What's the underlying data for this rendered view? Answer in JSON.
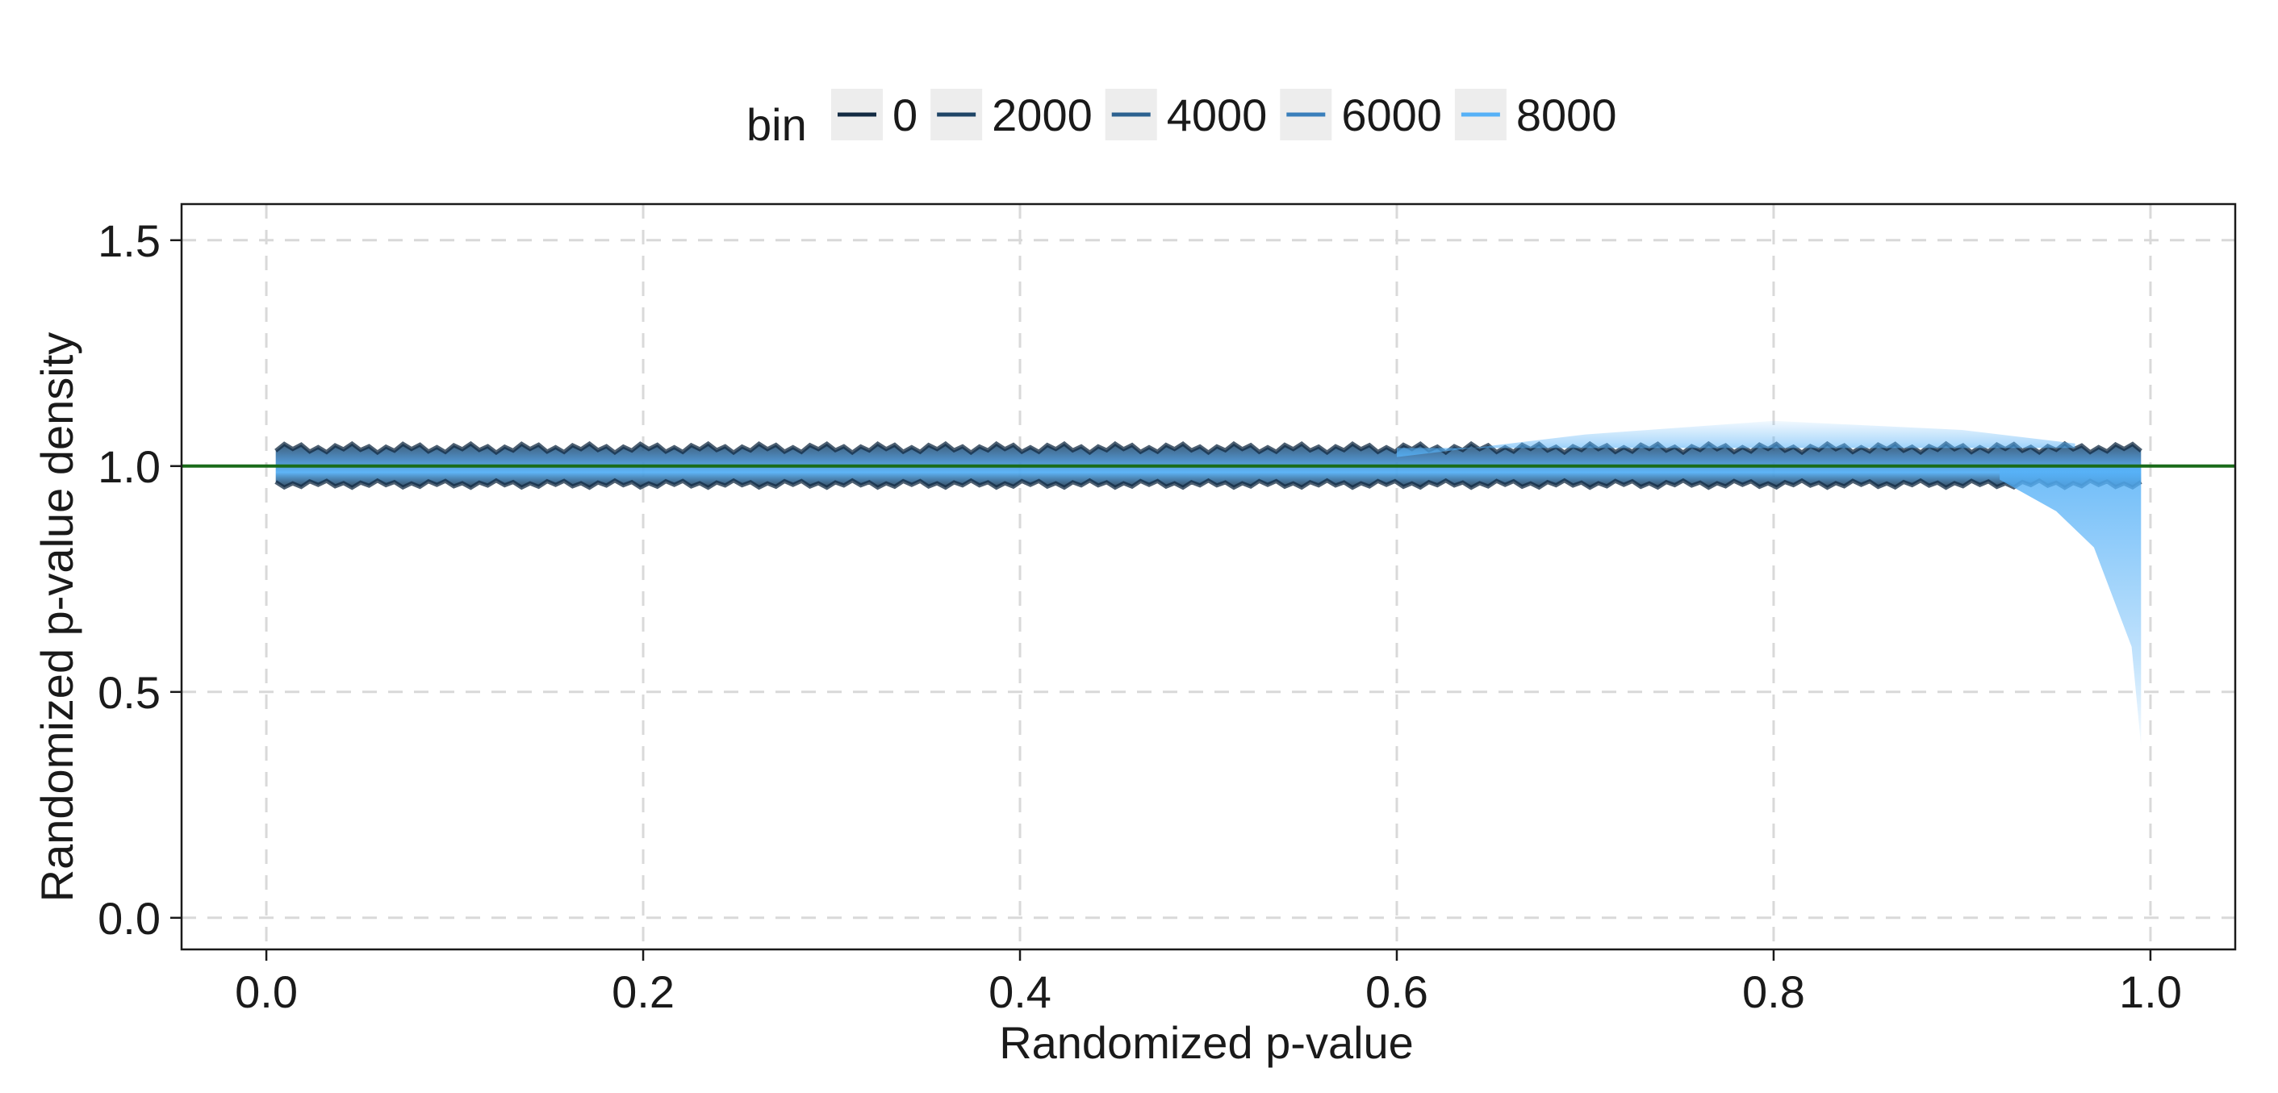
{
  "chart_data": {
    "type": "line",
    "title": "",
    "xlabel": "Randomized p-value",
    "ylabel": "Randomized p-value density",
    "xlim": [
      -0.045,
      1.045
    ],
    "ylim": [
      -0.07,
      1.58
    ],
    "x_ticks": [
      "0.0",
      "0.2",
      "0.4",
      "0.6",
      "0.8",
      "1.0"
    ],
    "y_ticks": [
      "0.0",
      "0.5",
      "1.0",
      "1.5"
    ],
    "x_tick_values": [
      0.0,
      0.2,
      0.4,
      0.6,
      0.8,
      1.0
    ],
    "y_tick_values": [
      0.0,
      0.5,
      1.0,
      1.5
    ],
    "grid": true,
    "grid_style": "dashed",
    "legend": {
      "title": "bin",
      "position": "top",
      "entries": [
        {
          "label": "0",
          "value": 0,
          "color": "#132B43"
        },
        {
          "label": "2000",
          "value": 2000,
          "color": "#1F4566"
        },
        {
          "label": "4000",
          "value": 4000,
          "color": "#2C6190"
        },
        {
          "label": "6000",
          "value": 6000,
          "color": "#3A7FBB"
        },
        {
          "label": "8000",
          "value": 8000,
          "color": "#56B1F7"
        }
      ]
    },
    "reference_line": {
      "y": 1.0,
      "color": "#1a6b1a"
    },
    "density_band": {
      "x_start": 0.005,
      "x_end": 0.995,
      "center": 1.0,
      "lower_typical": 0.96,
      "upper_typical": 1.04,
      "upper_hump_high_bins": [
        {
          "x": 0.6,
          "y": 1.02
        },
        {
          "x": 0.7,
          "y": 1.07
        },
        {
          "x": 0.8,
          "y": 1.1
        },
        {
          "x": 0.9,
          "y": 1.08
        },
        {
          "x": 0.96,
          "y": 1.05
        }
      ],
      "right_tail_drop_high_bins": [
        {
          "x": 0.92,
          "y": 0.97
        },
        {
          "x": 0.95,
          "y": 0.9
        },
        {
          "x": 0.97,
          "y": 0.82
        },
        {
          "x": 0.99,
          "y": 0.6
        },
        {
          "x": 0.995,
          "y": 0.38
        }
      ]
    }
  }
}
